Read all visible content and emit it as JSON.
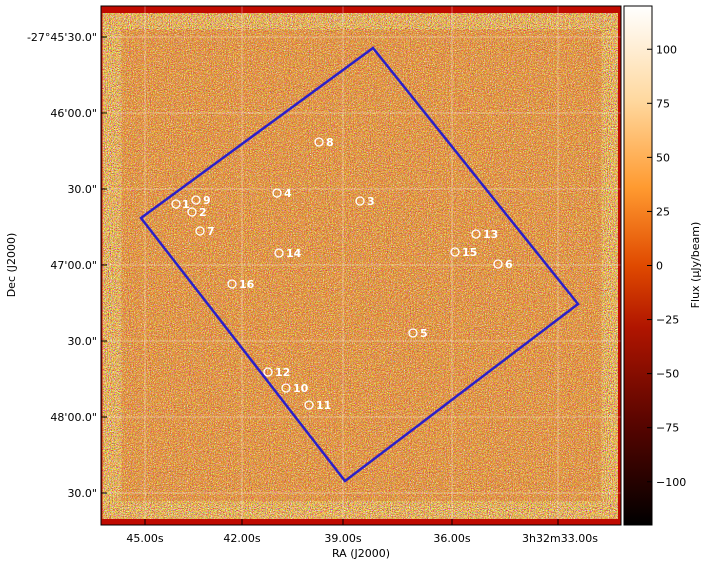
{
  "chart_data": {
    "type": "heatmap",
    "title": "",
    "xlabel": "RA (J2000)",
    "ylabel": "Dec (J2000)",
    "colorbar_label": "Flux (μJy/beam)",
    "x_ticks": [
      "45.00s",
      "42.00s",
      "39.00s",
      "36.00s",
      "3h32m33.00s"
    ],
    "y_ticks": [
      "-27°45'30.0\"",
      "46'00.0\"",
      "30.0\"",
      "47'00.0\"",
      "30.0\"",
      "48'00.0\"",
      "30.0\""
    ],
    "colorbar_range": [
      -120,
      120
    ],
    "colorbar_ticks": [
      "100",
      "75",
      "50",
      "25",
      "0",
      "−25",
      "−50",
      "−75",
      "−100"
    ],
    "colorbar_tick_values": [
      100,
      75,
      50,
      25,
      0,
      -25,
      -50,
      -75,
      -100
    ],
    "grid": true,
    "footprint_color": "#2b20c8",
    "background_color": "#c00a00",
    "sources": [
      "1",
      "2",
      "3",
      "4",
      "5",
      "6",
      "7",
      "8",
      "9",
      "10",
      "11",
      "12",
      "13",
      "14",
      "15",
      "16"
    ]
  }
}
